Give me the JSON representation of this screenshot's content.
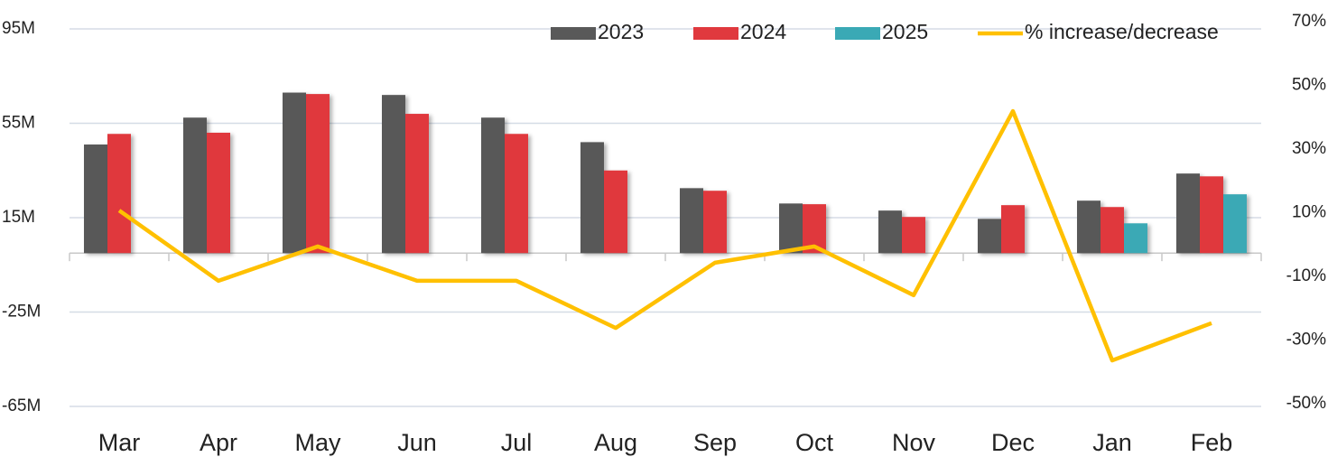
{
  "chart_data": {
    "type": "bar",
    "categories": [
      "Mar",
      "Apr",
      "May",
      "Jun",
      "Jul",
      "Aug",
      "Sep",
      "Oct",
      "Nov",
      "Dec",
      "Jan",
      "Feb"
    ],
    "series": [
      {
        "name": "2023",
        "color": "#595959",
        "values": [
          46,
          57.4,
          68,
          67,
          57.4,
          47,
          27.5,
          21,
          18,
          14.5,
          22.2,
          33.7
        ]
      },
      {
        "name": "2024",
        "color": "#e0393e",
        "values": [
          50.5,
          51,
          67.4,
          59,
          50.5,
          35,
          26.4,
          20.7,
          15.3,
          20.3,
          19.5,
          32.5
        ]
      },
      {
        "name": "2025",
        "color": "#3aa9b5",
        "values": [
          null,
          null,
          null,
          null,
          null,
          null,
          null,
          null,
          null,
          null,
          12.6,
          24.9
        ]
      },
      {
        "name": "% increase/decrease",
        "color": "#ffc000",
        "type": "line",
        "axis": "y2",
        "values": [
          10.7,
          -11.4,
          -0.6,
          -11.4,
          -11.4,
          -26.2,
          -5.7,
          -0.6,
          -15.9,
          41.9,
          -36.4,
          -24.7
        ]
      }
    ],
    "ylim": [
      -65,
      95
    ],
    "yticks": [
      {
        "value": -65,
        "label": "-65M"
      },
      {
        "value": -25,
        "label": "-25M"
      },
      {
        "value": 15,
        "label": "15M"
      },
      {
        "value": 55,
        "label": "55M"
      },
      {
        "value": 95,
        "label": "95M"
      }
    ],
    "y2lim": [
      -50,
      70
    ],
    "y2ticks": [
      {
        "value": -50,
        "label": "-50%"
      },
      {
        "value": -30,
        "label": "-30%"
      },
      {
        "value": -10,
        "label": "-10%"
      },
      {
        "value": 10,
        "label": "10%"
      },
      {
        "value": 30,
        "label": "30%"
      },
      {
        "value": 50,
        "label": "50%"
      },
      {
        "value": 70,
        "label": "70%"
      }
    ],
    "grid": true,
    "legend": "top"
  }
}
